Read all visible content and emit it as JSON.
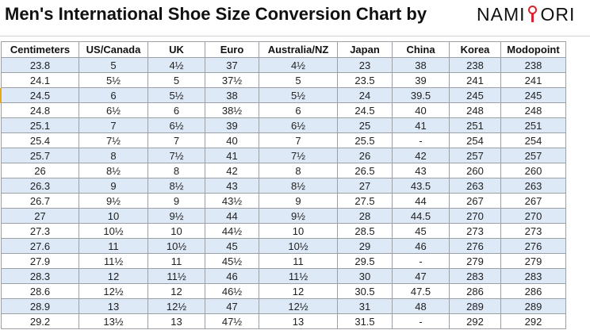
{
  "title": "Men's International Shoe Size Conversion Chart by",
  "brand": {
    "before": "NAMI",
    "after": "ORI",
    "mark_color": "#d9232d"
  },
  "colors": {
    "alt_row": "#dde9f7",
    "grid": "#9aa0a6",
    "row_marker": "#e6a817"
  },
  "columns": [
    "Centimeters",
    "US/Canada",
    "UK",
    "Euro",
    "Australia/NZ",
    "Japan",
    "China",
    "Korea",
    "Modopoint"
  ],
  "rows": [
    [
      "23.8",
      "5",
      "4½",
      "37",
      "4½",
      "23",
      "38",
      "238",
      "238"
    ],
    [
      "24.1",
      "5½",
      "5",
      "37½",
      "5",
      "23.5",
      "39",
      "241",
      "241"
    ],
    [
      "24.5",
      "6",
      "5½",
      "38",
      "5½",
      "24",
      "39.5",
      "245",
      "245"
    ],
    [
      "24.8",
      "6½",
      "6",
      "38½",
      "6",
      "24.5",
      "40",
      "248",
      "248"
    ],
    [
      "25.1",
      "7",
      "6½",
      "39",
      "6½",
      "25",
      "41",
      "251",
      "251"
    ],
    [
      "25.4",
      "7½",
      "7",
      "40",
      "7",
      "25.5",
      "-",
      "254",
      "254"
    ],
    [
      "25.7",
      "8",
      "7½",
      "41",
      "7½",
      "26",
      "42",
      "257",
      "257"
    ],
    [
      "26",
      "8½",
      "8",
      "42",
      "8",
      "26.5",
      "43",
      "260",
      "260"
    ],
    [
      "26.3",
      "9",
      "8½",
      "43",
      "8½",
      "27",
      "43.5",
      "263",
      "263"
    ],
    [
      "26.7",
      "9½",
      "9",
      "43½",
      "9",
      "27.5",
      "44",
      "267",
      "267"
    ],
    [
      "27",
      "10",
      "9½",
      "44",
      "9½",
      "28",
      "44.5",
      "270",
      "270"
    ],
    [
      "27.3",
      "10½",
      "10",
      "44½",
      "10",
      "28.5",
      "45",
      "273",
      "273"
    ],
    [
      "27.6",
      "11",
      "10½",
      "45",
      "10½",
      "29",
      "46",
      "276",
      "276"
    ],
    [
      "27.9",
      "11½",
      "11",
      "45½",
      "11",
      "29.5",
      "-",
      "279",
      "279"
    ],
    [
      "28.3",
      "12",
      "11½",
      "46",
      "11½",
      "30",
      "47",
      "283",
      "283"
    ],
    [
      "28.6",
      "12½",
      "12",
      "46½",
      "12",
      "30.5",
      "47.5",
      "286",
      "286"
    ],
    [
      "28.9",
      "13",
      "12½",
      "47",
      "12½",
      "31",
      "48",
      "289",
      "289"
    ],
    [
      "29.2",
      "13½",
      "13",
      "47½",
      "13",
      "31.5",
      "-",
      "292",
      "292"
    ]
  ]
}
